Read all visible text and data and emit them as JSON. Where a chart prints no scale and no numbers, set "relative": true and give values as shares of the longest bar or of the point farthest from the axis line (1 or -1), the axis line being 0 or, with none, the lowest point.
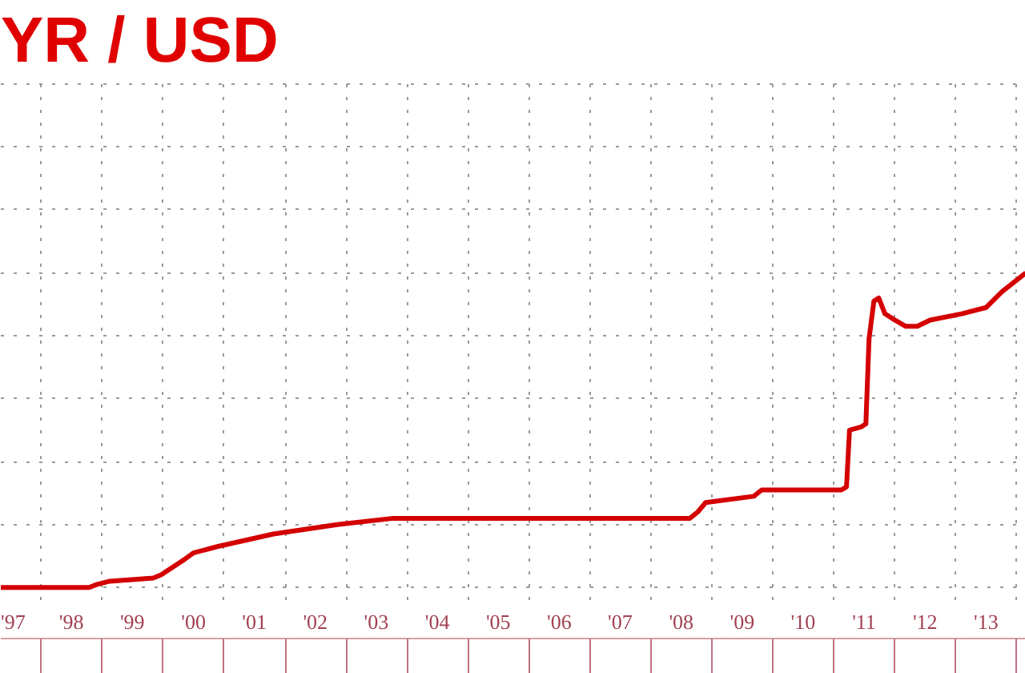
{
  "chart_data": {
    "type": "line",
    "title": "YR / USD",
    "relative": true,
    "grid": true,
    "marker": "none",
    "line_style": "solid",
    "xlim": [
      "1997-05-04",
      "2014-02-24"
    ],
    "xticks": [
      {
        "value": "1997-07-01",
        "label": "'97"
      },
      {
        "value": "1998-01-01",
        "label": null
      },
      {
        "value": "1998-07-01",
        "label": "'98"
      },
      {
        "value": "1999-01-01",
        "label": null
      },
      {
        "value": "1999-07-01",
        "label": "'99"
      },
      {
        "value": "2000-01-01",
        "label": null
      },
      {
        "value": "2000-07-01",
        "label": "'00"
      },
      {
        "value": "2001-01-01",
        "label": null
      },
      {
        "value": "2001-07-01",
        "label": "'01"
      },
      {
        "value": "2002-01-01",
        "label": null
      },
      {
        "value": "2002-07-01",
        "label": "'02"
      },
      {
        "value": "2003-01-01",
        "label": null
      },
      {
        "value": "2003-07-01",
        "label": "'03"
      },
      {
        "value": "2004-01-01",
        "label": null
      },
      {
        "value": "2004-07-01",
        "label": "'04"
      },
      {
        "value": "2005-01-01",
        "label": null
      },
      {
        "value": "2005-07-01",
        "label": "'05"
      },
      {
        "value": "2006-01-01",
        "label": null
      },
      {
        "value": "2006-07-01",
        "label": "'06"
      },
      {
        "value": "2007-01-01",
        "label": null
      },
      {
        "value": "2007-07-01",
        "label": "'07"
      },
      {
        "value": "2008-01-01",
        "label": null
      },
      {
        "value": "2008-07-01",
        "label": "'08"
      },
      {
        "value": "2009-01-01",
        "label": null
      },
      {
        "value": "2009-07-01",
        "label": "'09"
      },
      {
        "value": "2010-01-01",
        "label": null
      },
      {
        "value": "2010-07-01",
        "label": "'10"
      },
      {
        "value": "2011-01-01",
        "label": null
      },
      {
        "value": "2011-07-01",
        "label": "'11"
      },
      {
        "value": "2012-01-01",
        "label": null
      },
      {
        "value": "2012-07-01",
        "label": "'12"
      },
      {
        "value": "2013-01-01",
        "label": null
      },
      {
        "value": "2013-07-01",
        "label": "'13"
      },
      {
        "value": "2014-01-01",
        "label": null
      }
    ],
    "series": [
      {
        "color": "#d40000",
        "x": [
          "1997-05-04",
          "1998-10-15",
          "1998-12-02",
          "1999-02-16",
          "1999-11-03",
          "1999-12-20",
          "2000-05-10",
          "2000-07-01",
          "2000-11-20",
          "2001-10-23",
          "2002-11-10",
          "2003-10-12",
          "2006-01-04",
          "2006-02-20",
          "2007-05-01",
          "2008-08-22",
          "2008-10-08",
          "2008-11-24",
          "2009-09-09",
          "2009-10-26",
          "2011-02-16",
          "2011-03-18",
          "2011-04-05",
          "2011-06-13",
          "2011-07-12",
          "2011-07-31",
          "2011-08-29",
          "2011-09-27",
          "2011-11-03",
          "2012-01-01",
          "2012-03-07",
          "2012-05-15",
          "2012-07-31",
          "2013-02-06",
          "2013-07-02",
          "2013-10-04",
          "2014-01-08",
          "2014-02-24"
        ],
        "values": [
          0,
          0,
          0.01,
          0.02,
          0.03,
          0.04,
          0.09,
          0.11,
          0.13,
          0.17,
          0.2,
          0.22,
          0.22,
          0.22,
          0.22,
          0.22,
          0.24,
          0.27,
          0.29,
          0.31,
          0.31,
          0.32,
          0.5,
          0.51,
          0.52,
          0.79,
          0.91,
          0.92,
          0.87,
          0.85,
          0.83,
          0.83,
          0.85,
          0.87,
          0.89,
          0.94,
          0.98,
          1
        ]
      }
    ]
  }
}
